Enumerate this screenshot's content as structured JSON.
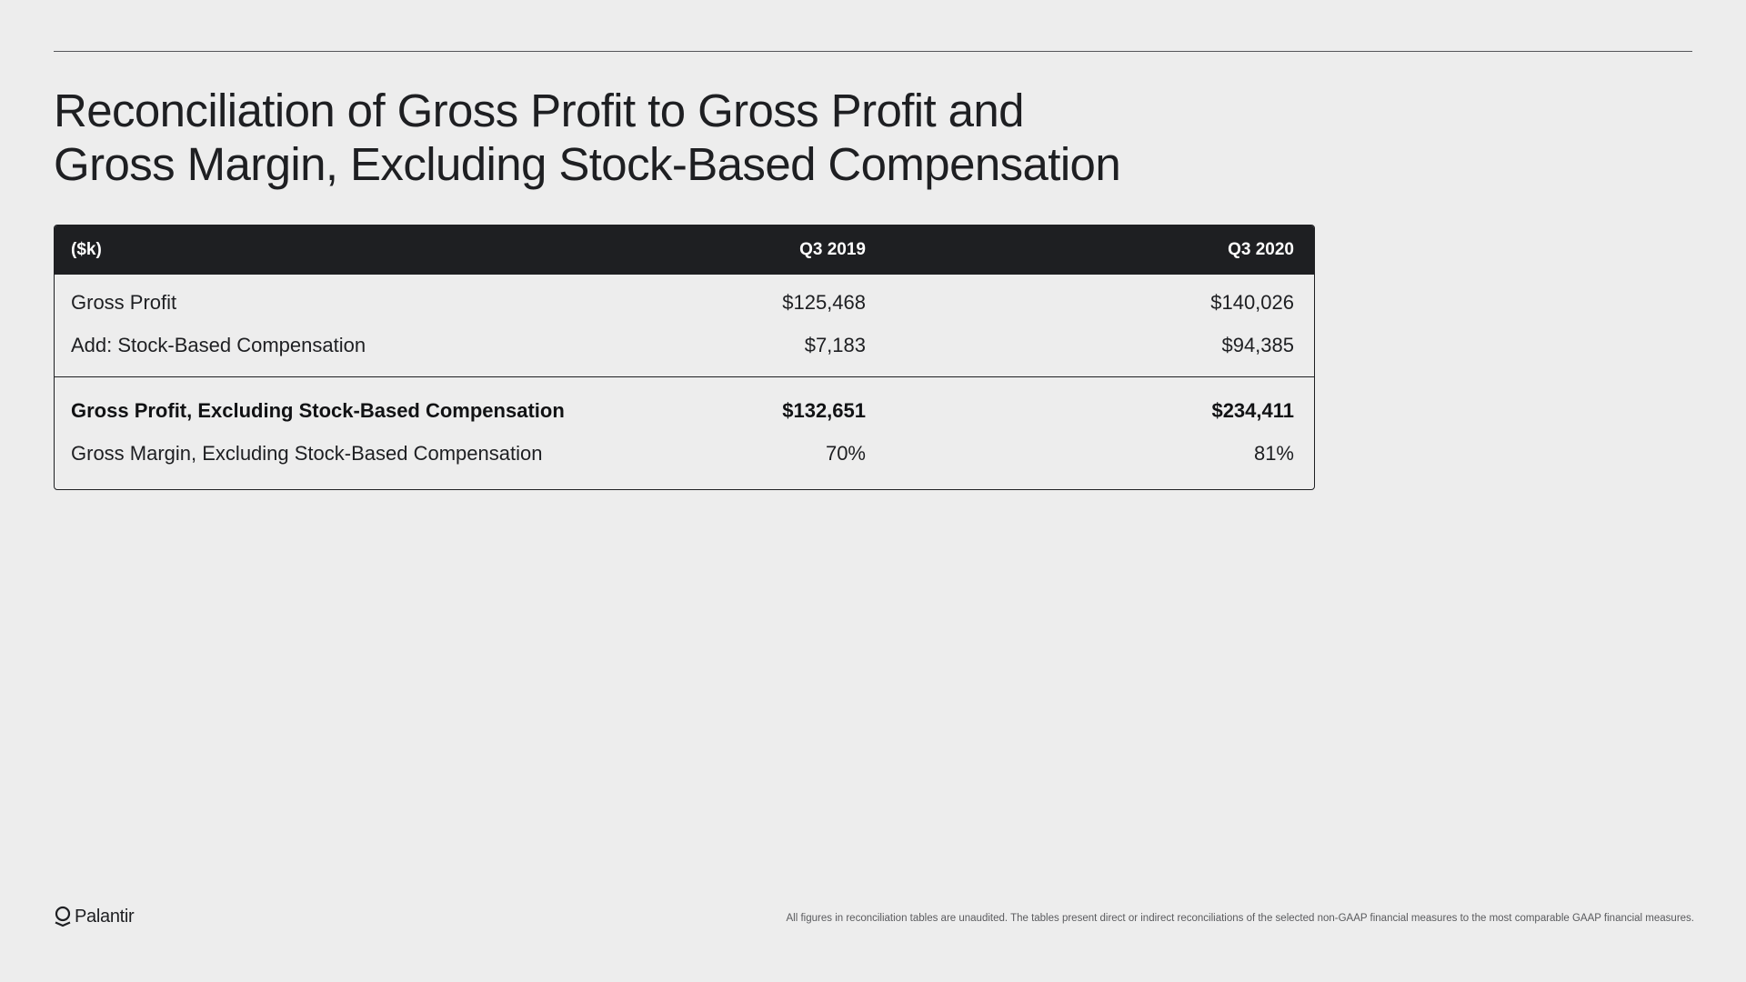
{
  "slide": {
    "title_line1": "Reconciliation of Gross Profit to Gross Profit and",
    "title_line2": "Gross Margin, Excluding Stock-Based Compensation"
  },
  "table": {
    "header": {
      "label": "($k)",
      "col1": "Q3 2019",
      "col2": "Q3 2020"
    },
    "rows": [
      {
        "label": "Gross Profit",
        "q3_2019": "$125,468",
        "q3_2020": "$140,026"
      },
      {
        "label": "Add: Stock-Based Compensation",
        "q3_2019": "$7,183",
        "q3_2020": "$94,385"
      },
      {
        "label": "Gross Profit, Excluding Stock-Based Compensation",
        "q3_2019": "$132,651",
        "q3_2020": "$234,411"
      },
      {
        "label": "Gross Margin, Excluding Stock-Based Compensation",
        "q3_2019": "70%",
        "q3_2020": "81%"
      }
    ]
  },
  "footer": {
    "logo_text": "Palantir",
    "logo_icon": "palantir-logo-icon",
    "note": "All figures in reconciliation tables are unaudited. The tables present direct or indirect reconciliations of the selected non-GAAP financial measures to the most comparable GAAP financial measures."
  },
  "colors": {
    "background": "#ededed",
    "header_bg": "#1e1f22",
    "text": "#1e1f22",
    "footnote": "#5a5b5e"
  }
}
